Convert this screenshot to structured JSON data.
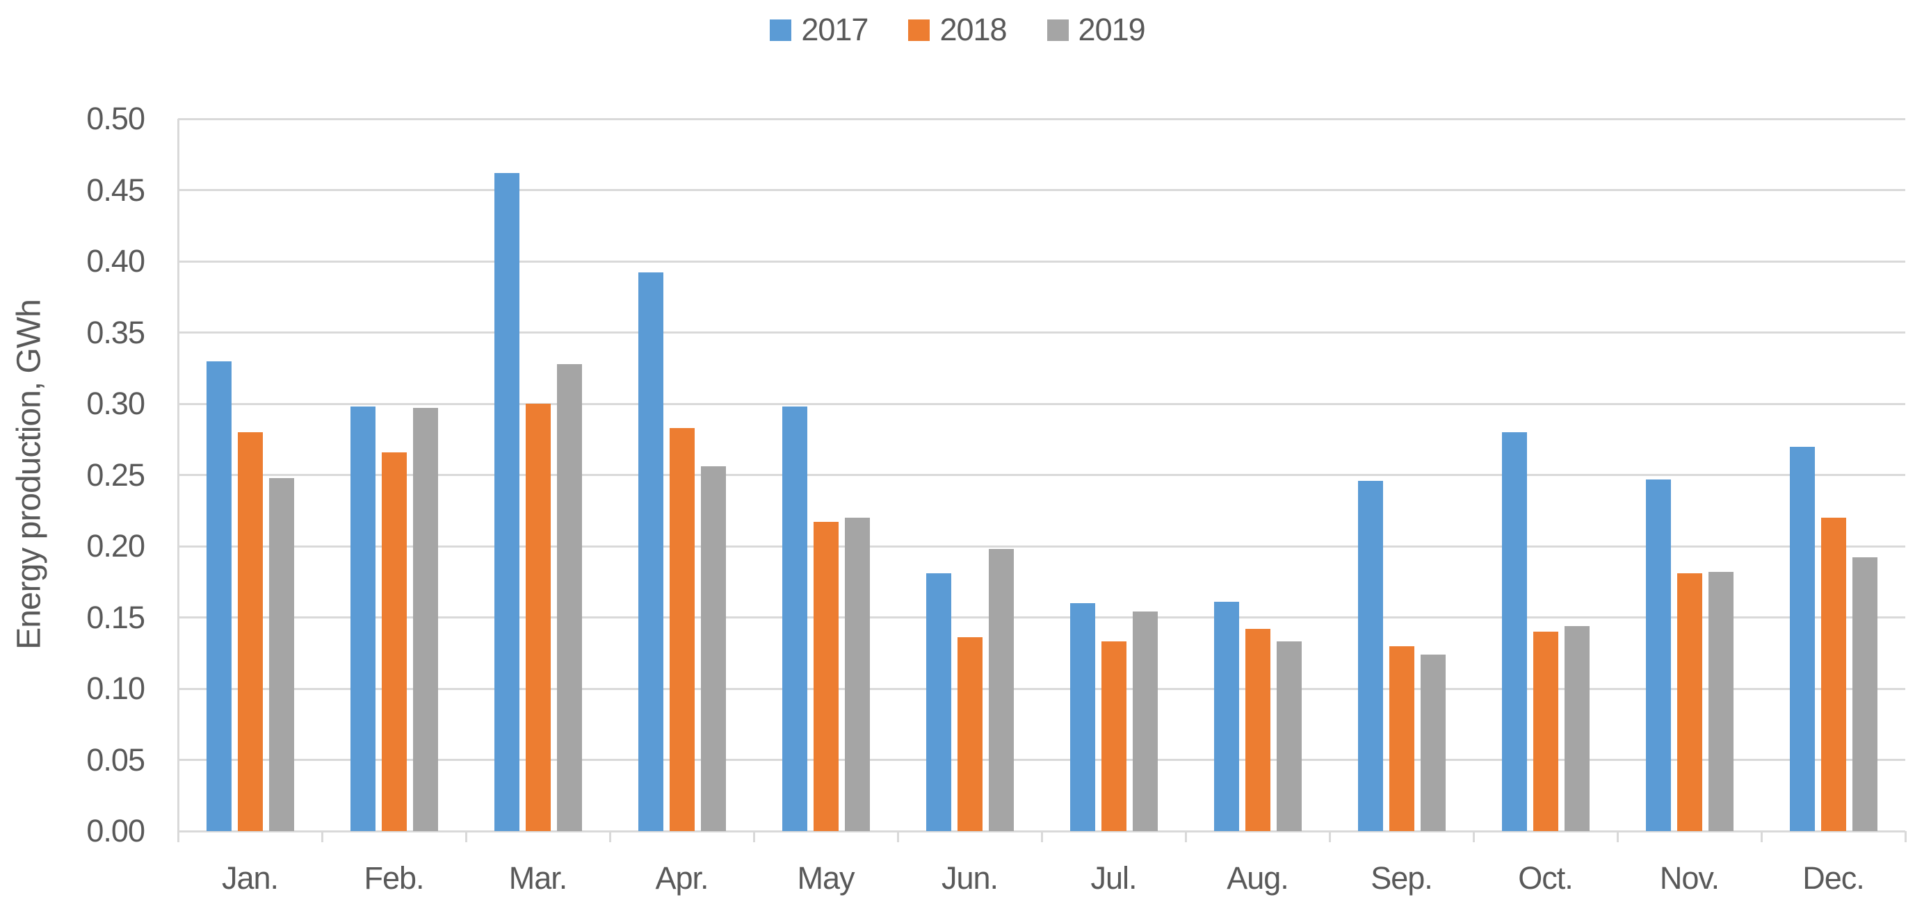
{
  "chart_data": {
    "type": "bar",
    "title": "",
    "categories": [
      "Jan.",
      "Feb.",
      "Mar.",
      "Apr.",
      "May",
      "Jun.",
      "Jul.",
      "Aug.",
      "Sep.",
      "Oct.",
      "Nov.",
      "Dec."
    ],
    "series": [
      {
        "name": "2017",
        "color": "#5B9BD5",
        "values": [
          0.33,
          0.298,
          0.462,
          0.392,
          0.298,
          0.181,
          0.16,
          0.161,
          0.246,
          0.28,
          0.247,
          0.27
        ]
      },
      {
        "name": "2018",
        "color": "#ED7D31",
        "values": [
          0.28,
          0.266,
          0.3,
          0.283,
          0.217,
          0.136,
          0.133,
          0.142,
          0.13,
          0.14,
          0.181,
          0.22
        ]
      },
      {
        "name": "2019",
        "color": "#A5A5A5",
        "values": [
          0.248,
          0.297,
          0.328,
          0.256,
          0.22,
          0.198,
          0.154,
          0.133,
          0.124,
          0.144,
          0.182,
          0.192
        ]
      }
    ],
    "xlabel": "",
    "ylabel": "Energy production, GWh",
    "ylim": [
      0.0,
      0.5
    ],
    "ytick_step": 0.05,
    "ytick_labels": [
      "0.00",
      "0.05",
      "0.10",
      "0.15",
      "0.20",
      "0.25",
      "0.30",
      "0.35",
      "0.40",
      "0.45",
      "0.50"
    ],
    "grid": true,
    "legend_position": "top-center"
  },
  "colors": {
    "text": "#595959",
    "gridline": "#D9D9D9",
    "background": "#FFFFFF"
  }
}
